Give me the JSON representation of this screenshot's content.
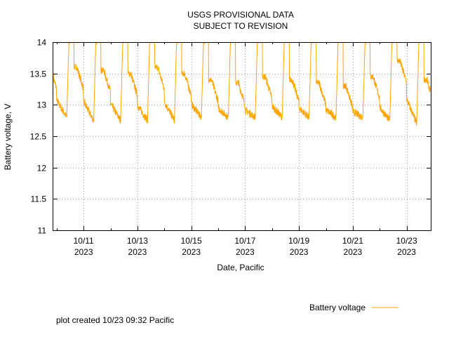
{
  "chart_data": {
    "type": "line",
    "title": [
      "USGS PROVISIONAL DATA",
      "SUBJECT TO REVISION"
    ],
    "xlabel": "Date, Pacific",
    "ylabel": "Battery voltage, V",
    "ylim": [
      11,
      14
    ],
    "xlim": [
      "2023-10-09 21:00",
      "2023-10-23 21:30"
    ],
    "yticks": [
      11,
      11.5,
      12,
      12.5,
      13,
      13.5,
      14
    ],
    "ytick_labels": [
      "11",
      "11.5",
      "12",
      "12.5",
      "13",
      "13.5",
      "14"
    ],
    "xticks": [
      {
        "date": "2023-10-11",
        "line1": "10/11",
        "line2": "2023"
      },
      {
        "date": "2023-10-13",
        "line1": "10/13",
        "line2": "2023"
      },
      {
        "date": "2023-10-15",
        "line1": "10/15",
        "line2": "2023"
      },
      {
        "date": "2023-10-17",
        "line1": "10/17",
        "line2": "2023"
      },
      {
        "date": "2023-10-19",
        "line1": "10/19",
        "line2": "2023"
      },
      {
        "date": "2023-10-21",
        "line1": "10/21",
        "line2": "2023"
      },
      {
        "date": "2023-10-23",
        "line1": "10/23",
        "line2": "2023"
      }
    ],
    "grid": true,
    "legend_position": "bottom-right",
    "series": [
      {
        "name": "Battery voltage",
        "color": "#ffa500",
        "daily_pattern": [
          {
            "day": "2023-10-10",
            "morning_min": 12.8,
            "afternoon_plateau": 13.6
          },
          {
            "day": "2023-10-11",
            "morning_min": 12.75,
            "afternoon_plateau": 13.55
          },
          {
            "day": "2023-10-12",
            "morning_min": 12.75,
            "afternoon_plateau": 13.5
          },
          {
            "day": "2023-10-13",
            "morning_min": 12.75,
            "afternoon_plateau": 13.6
          },
          {
            "day": "2023-10-14",
            "morning_min": 12.75,
            "afternoon_plateau": 13.5
          },
          {
            "day": "2023-10-15",
            "morning_min": 12.8,
            "afternoon_plateau": 13.4
          },
          {
            "day": "2023-10-16",
            "morning_min": 12.8,
            "afternoon_plateau": 13.35
          },
          {
            "day": "2023-10-17",
            "morning_min": 12.8,
            "afternoon_plateau": 13.45
          },
          {
            "day": "2023-10-18",
            "morning_min": 12.8,
            "afternoon_plateau": 13.4
          },
          {
            "day": "2023-10-19",
            "morning_min": 12.8,
            "afternoon_plateau": 13.35
          },
          {
            "day": "2023-10-20",
            "morning_min": 12.8,
            "afternoon_plateau": 13.3
          },
          {
            "day": "2023-10-21",
            "morning_min": 12.8,
            "afternoon_plateau": 13.45
          },
          {
            "day": "2023-10-22",
            "morning_min": 12.75,
            "afternoon_plateau": 13.7
          },
          {
            "day": "2023-10-23",
            "morning_min": 12.7,
            "afternoon_plateau": null
          }
        ],
        "daily_peak": 14.0,
        "start_value": 13.5
      }
    ]
  },
  "footer": {
    "created_text": "plot created 10/23 09:32 Pacific"
  }
}
